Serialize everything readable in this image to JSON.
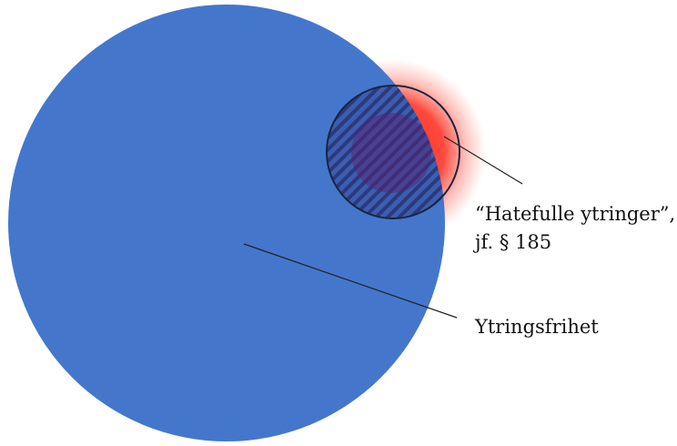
{
  "diagram": {
    "labels": {
      "hate_line1": "“Hatefulle ytringer”,",
      "hate_line2": "jf. § 185",
      "freedom": "Ytringsfrihet"
    },
    "colors": {
      "large_circle": "#4477CC",
      "glow": "#FF2A1A",
      "hatch": "#2E3F82",
      "outline": "#1A2440",
      "leader_line": "#222222",
      "text": "#111111"
    }
  }
}
